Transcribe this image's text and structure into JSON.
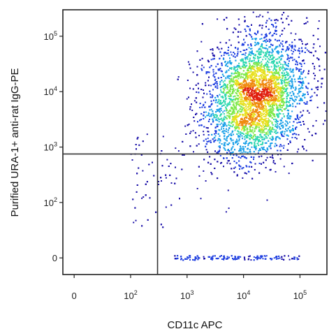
{
  "chart_data": {
    "type": "scatter",
    "style": "flow cytometry density dot plot, pseudocolor (blue low to red high)",
    "xlabel": "CD11c APC",
    "ylabel": "Purified URA-1+ anti-rat IgG-PE",
    "x_scale": "biexponential (log above ~10^2, linear near 0)",
    "y_scale": "biexponential (log above ~10^2, linear near 0)",
    "xlim": [
      -20,
      300000
    ],
    "ylim": [
      -30,
      300000
    ],
    "x_ticks": [
      {
        "value": 0,
        "label": "0"
      },
      {
        "value": 100,
        "label": "10^2"
      },
      {
        "value": 1000,
        "label": "10^3"
      },
      {
        "value": 10000,
        "label": "10^4"
      },
      {
        "value": 100000,
        "label": "10^5"
      }
    ],
    "y_ticks": [
      {
        "value": 0,
        "label": "0"
      },
      {
        "value": 100,
        "label": "10^2"
      },
      {
        "value": 1000,
        "label": "10^3"
      },
      {
        "value": 10000,
        "label": "10^4"
      },
      {
        "value": 100000,
        "label": "10^5"
      }
    ],
    "quadrant_gate": {
      "x": 300,
      "y": 750
    },
    "populations": [
      {
        "name": "main",
        "x_center": 16000,
        "y_center": 8000,
        "x_spread_decades": 0.45,
        "y_spread_decades": 0.55,
        "fraction": 0.94
      },
      {
        "name": "x-axis events",
        "x_range": [
          600,
          100000
        ],
        "y": 0,
        "fraction": 0.04
      },
      {
        "name": "sparse",
        "x_range": [
          100,
          1000
        ],
        "y_range": [
          50,
          2000
        ],
        "fraction": 0.02
      }
    ],
    "density_colors": [
      "#1a0fa8",
      "#1f3fe0",
      "#1aa0e8",
      "#2fd8b0",
      "#7ee84a",
      "#e8e020",
      "#f08a10",
      "#e02010"
    ],
    "grid": false,
    "legend": "none"
  }
}
